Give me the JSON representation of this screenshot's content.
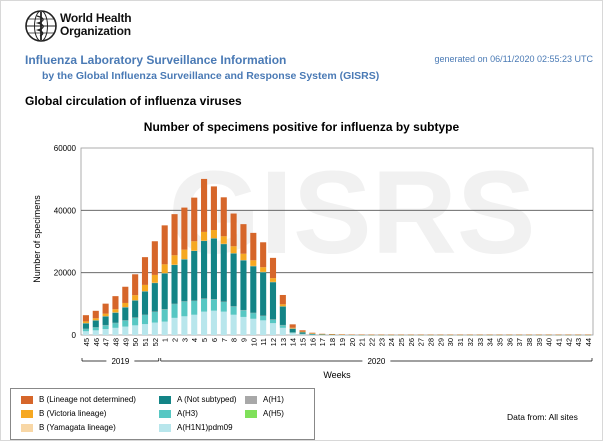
{
  "header": {
    "org_line1": "World Health",
    "org_line2": "Organization",
    "title": "Influenza Laboratory Surveillance Information",
    "subtitle": "by the Global Influenza Surveillance and Response System (GISRS)",
    "generated": "generated on 06/11/2020 02:55:23 UTC",
    "section": "Global circulation of influenza viruses",
    "data_from": "Data from: All sites",
    "watermark": "GISRS"
  },
  "chart_data": {
    "type": "bar",
    "stacked": true,
    "title": "Number of specimens positive for influenza by subtype",
    "xlabel": "Weeks",
    "ylabel": "Number of specimens",
    "ylim": [
      0,
      60000
    ],
    "yticks": [
      0,
      20000,
      40000,
      60000
    ],
    "year_groups": [
      {
        "label": "2019",
        "start": 0,
        "end": 7
      },
      {
        "label": "2020",
        "start": 8,
        "end": 51
      }
    ],
    "categories": [
      "45",
      "46",
      "47",
      "48",
      "49",
      "50",
      "51",
      "52",
      "1",
      "2",
      "3",
      "4",
      "5",
      "6",
      "7",
      "8",
      "9",
      "10",
      "11",
      "12",
      "13",
      "14",
      "15",
      "16",
      "17",
      "18",
      "19",
      "20",
      "21",
      "22",
      "23",
      "24",
      "25",
      "26",
      "27",
      "28",
      "29",
      "30",
      "31",
      "32",
      "33",
      "34",
      "35",
      "36",
      "37",
      "38",
      "39",
      "40",
      "41",
      "42",
      "43",
      "44"
    ],
    "series": [
      {
        "name": "A(H1N1)pdm09",
        "color": "#b8e6ec",
        "values": [
          1200,
          1500,
          1900,
          2300,
          2700,
          3100,
          3500,
          4000,
          4300,
          5500,
          6000,
          6500,
          7500,
          7800,
          7500,
          6500,
          5800,
          5200,
          4700,
          3800,
          2300,
          600,
          250,
          120,
          80,
          50,
          40,
          30,
          25,
          20,
          20,
          20,
          20,
          20,
          20,
          20,
          20,
          20,
          20,
          20,
          20,
          20,
          20,
          20,
          20,
          20,
          20,
          20,
          20,
          20,
          20,
          20
        ]
      },
      {
        "name": "A(H3)",
        "color": "#57c7c3",
        "values": [
          800,
          1000,
          1300,
          1600,
          2000,
          2500,
          3000,
          3500,
          4000,
          4500,
          4800,
          4500,
          4200,
          3700,
          3200,
          2700,
          2200,
          1900,
          1500,
          1200,
          900,
          300,
          120,
          60,
          40,
          30,
          20,
          15,
          10,
          10,
          10,
          10,
          10,
          10,
          10,
          10,
          10,
          10,
          10,
          10,
          10,
          10,
          10,
          10,
          10,
          10,
          10,
          10,
          10,
          10,
          10,
          10
        ]
      },
      {
        "name": "A(H1)",
        "color": "#a8a8a8",
        "values": [
          20,
          20,
          20,
          20,
          30,
          30,
          30,
          30,
          30,
          30,
          30,
          30,
          30,
          30,
          30,
          30,
          30,
          30,
          20,
          20,
          20,
          10,
          10,
          0,
          0,
          0,
          0,
          0,
          0,
          0,
          0,
          0,
          0,
          0,
          0,
          0,
          0,
          0,
          0,
          0,
          0,
          0,
          0,
          0,
          0,
          0,
          0,
          0,
          0,
          0,
          0,
          0
        ]
      },
      {
        "name": "A(H5)",
        "color": "#7fe05a",
        "values": [
          0,
          0,
          0,
          0,
          0,
          0,
          0,
          0,
          0,
          0,
          0,
          0,
          0,
          0,
          0,
          0,
          0,
          0,
          0,
          0,
          0,
          0,
          0,
          0,
          0,
          0,
          0,
          0,
          0,
          0,
          0,
          0,
          0,
          0,
          0,
          0,
          0,
          0,
          0,
          0,
          0,
          0,
          0,
          0,
          0,
          0,
          0,
          0,
          0,
          0,
          0,
          0
        ]
      },
      {
        "name": "A (Not subtyped)",
        "color": "#138486",
        "values": [
          1800,
          2200,
          2800,
          3300,
          4200,
          5500,
          7500,
          9200,
          11500,
          12500,
          13500,
          16000,
          18500,
          19500,
          18500,
          17000,
          16000,
          15000,
          14000,
          12000,
          6000,
          1200,
          600,
          300,
          150,
          100,
          80,
          60,
          50,
          40,
          40,
          40,
          40,
          40,
          40,
          40,
          40,
          40,
          40,
          40,
          40,
          40,
          40,
          40,
          40,
          40,
          40,
          40,
          40,
          40,
          40,
          40
        ]
      },
      {
        "name": "B (Yamagata lineage)",
        "color": "#f8d7a6",
        "values": [
          40,
          40,
          40,
          50,
          50,
          50,
          50,
          50,
          50,
          50,
          50,
          50,
          50,
          50,
          50,
          40,
          40,
          40,
          30,
          30,
          20,
          10,
          10,
          10,
          0,
          0,
          0,
          0,
          0,
          0,
          0,
          0,
          0,
          0,
          0,
          0,
          0,
          0,
          0,
          0,
          0,
          0,
          0,
          0,
          0,
          0,
          0,
          0,
          0,
          0,
          0,
          0
        ]
      },
      {
        "name": "B (Victoria lineage)",
        "color": "#f6a821",
        "values": [
          500,
          600,
          800,
          1000,
          1300,
          1600,
          2000,
          2500,
          2800,
          3000,
          3000,
          3000,
          2800,
          2600,
          2400,
          2200,
          2000,
          1800,
          1500,
          1200,
          600,
          200,
          80,
          40,
          20,
          20,
          10,
          10,
          10,
          10,
          10,
          10,
          10,
          10,
          10,
          10,
          10,
          10,
          10,
          10,
          10,
          10,
          10,
          10,
          10,
          10,
          10,
          10,
          10,
          10,
          10,
          10
        ]
      },
      {
        "name": "B (Lineage not determined)",
        "color": "#d6662a",
        "values": [
          2000,
          2400,
          3200,
          4200,
          5200,
          6700,
          8900,
          10800,
          12500,
          13200,
          13500,
          14000,
          17000,
          14000,
          12500,
          10500,
          9500,
          8800,
          8000,
          6500,
          3000,
          1100,
          440,
          200,
          100,
          80,
          60,
          40,
          30,
          30,
          30,
          30,
          30,
          30,
          30,
          30,
          30,
          30,
          30,
          30,
          30,
          30,
          30,
          30,
          30,
          30,
          30,
          30,
          30,
          30,
          30,
          30
        ]
      }
    ]
  },
  "legend": {
    "items": [
      {
        "label": "B (Lineage not determined)",
        "color": "#d6662a"
      },
      {
        "label": "B (Victoria lineage)",
        "color": "#f6a821"
      },
      {
        "label": "B (Yamagata lineage)",
        "color": "#f8d7a6"
      },
      {
        "label": "A (Not subtyped)",
        "color": "#138486"
      },
      {
        "label": "A(H3)",
        "color": "#57c7c3"
      },
      {
        "label": "A(H1N1)pdm09",
        "color": "#b8e6ec"
      },
      {
        "label": "A(H1)",
        "color": "#a8a8a8"
      },
      {
        "label": "A(H5)",
        "color": "#7fe05a"
      }
    ]
  }
}
